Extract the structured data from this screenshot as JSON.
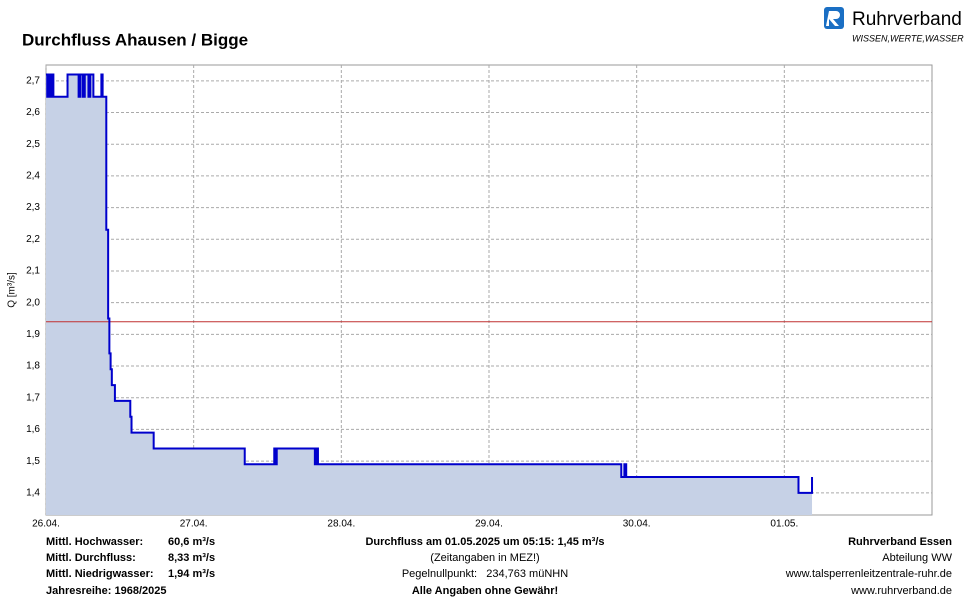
{
  "logo": {
    "name": "Ruhrverband",
    "tagline": "WISSEN,WERTE,WASSER"
  },
  "chart_data": {
    "type": "line",
    "title": "Durchfluss Ahausen / Bigge",
    "y_label": "Q [m³/s]",
    "x": [
      0,
      0.2,
      0.2,
      0.5,
      0.5,
      0.8,
      0.8,
      1.0,
      1.0,
      1.2,
      1.2,
      3.5,
      3.5,
      5.3,
      5.3,
      5.6,
      5.6,
      6.0,
      6.0,
      6.3,
      6.3,
      6.9,
      6.9,
      7.2,
      7.2,
      7.7,
      7.7,
      9.0,
      9.0,
      9.2,
      9.2,
      9.8,
      9.8,
      10.1,
      10.1,
      10.3,
      10.3,
      10.5,
      10.5,
      10.7,
      10.7,
      11.2,
      11.2,
      13.7,
      13.7,
      13.9,
      13.9,
      17.5,
      17.5,
      32.3,
      32.3,
      37.1,
      37.1,
      37.3,
      37.3,
      37.5,
      37.5,
      43.7,
      43.7,
      43.9,
      43.9,
      44.2,
      44.2,
      93.5,
      93.5,
      94.0,
      94.0,
      94.3,
      94.3,
      122.3,
      122.3,
      124.5,
      124.5
    ],
    "values": [
      2.72,
      2.72,
      2.65,
      2.65,
      2.72,
      2.72,
      2.65,
      2.65,
      2.72,
      2.72,
      2.65,
      2.65,
      2.72,
      2.72,
      2.65,
      2.65,
      2.72,
      2.72,
      2.65,
      2.65,
      2.72,
      2.72,
      2.65,
      2.65,
      2.72,
      2.72,
      2.65,
      2.65,
      2.72,
      2.72,
      2.65,
      2.65,
      2.23,
      2.23,
      1.95,
      1.95,
      1.84,
      1.84,
      1.79,
      1.79,
      1.74,
      1.74,
      1.69,
      1.69,
      1.64,
      1.64,
      1.59,
      1.59,
      1.54,
      1.54,
      1.49,
      1.49,
      1.54,
      1.54,
      1.49,
      1.49,
      1.54,
      1.54,
      1.49,
      1.49,
      1.54,
      1.54,
      1.49,
      1.49,
      1.45,
      1.45,
      1.49,
      1.49,
      1.45,
      1.45,
      1.4,
      1.4,
      1.45
    ],
    "color": "#0000cc",
    "area_color": "#c6d1e6",
    "reference_line": {
      "value": 1.94,
      "color": "#c03030"
    },
    "xlim": [
      0,
      144
    ],
    "xticks": [
      {
        "value": 0,
        "label": "26.04."
      },
      {
        "value": 24,
        "label": "27.04."
      },
      {
        "value": 48,
        "label": "28.04."
      },
      {
        "value": 72,
        "label": "29.04."
      },
      {
        "value": 96,
        "label": "30.04."
      },
      {
        "value": 120,
        "label": "01.05."
      }
    ],
    "ylim": [
      1.33,
      2.75
    ],
    "yticks": [
      {
        "value": 1.4,
        "label": "1,4"
      },
      {
        "value": 1.5,
        "label": "1,5"
      },
      {
        "value": 1.6,
        "label": "1,6"
      },
      {
        "value": 1.7,
        "label": "1,7"
      },
      {
        "value": 1.8,
        "label": "1,8"
      },
      {
        "value": 1.9,
        "label": "1,9"
      },
      {
        "value": 2.0,
        "label": "2,0"
      },
      {
        "value": 2.1,
        "label": "2,1"
      },
      {
        "value": 2.2,
        "label": "2,2"
      },
      {
        "value": 2.3,
        "label": "2,3"
      },
      {
        "value": 2.4,
        "label": "2,4"
      },
      {
        "value": 2.5,
        "label": "2,5"
      },
      {
        "value": 2.6,
        "label": "2,6"
      },
      {
        "value": 2.7,
        "label": "2,7"
      }
    ],
    "grid": true
  },
  "footer": {
    "left": [
      {
        "label": "Mittl. Hochwasser:",
        "value": "60,6 m³/s",
        "color": "#e00000"
      },
      {
        "label": "Mittl. Durchfluss:",
        "value": "8,33 m³/s",
        "color": "#16961a"
      },
      {
        "label": "Mittl. Niedrigwasser:",
        "value": "1,94 m³/s",
        "color": "#b04848"
      }
    ],
    "series_years": "Jahresreihe: 1968/2025",
    "center": [
      "Durchfluss am 01.05.2025 um 05:15: 1,45 m³/s",
      "(Zeitangaben in MEZ!)",
      "Pegelnullpunkt:   234,763 müNHN",
      "Alle Angaben ohne Gewähr!"
    ],
    "right": [
      "Ruhrverband Essen",
      "Abteilung WW",
      "www.talsperrenleitzentrale-ruhr.de",
      "www.ruhrverband.de"
    ]
  }
}
